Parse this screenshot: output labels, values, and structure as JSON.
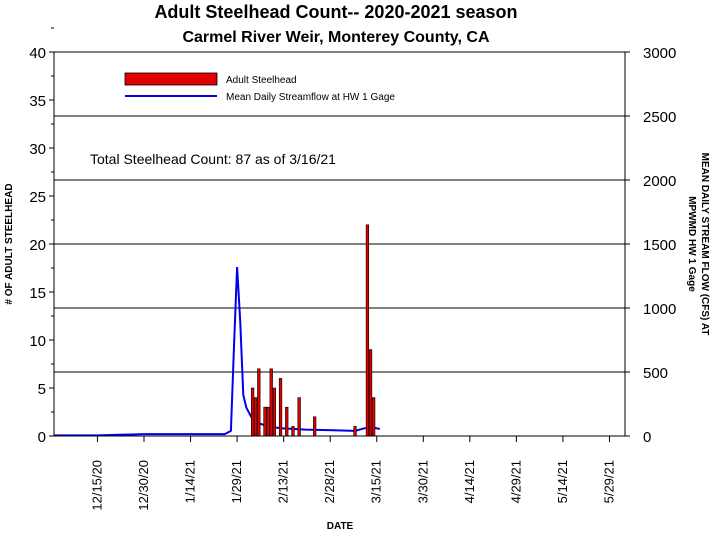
{
  "chart_data": {
    "type": "bar+line",
    "title": "Adult Steelhead Count-- 2020-2021 season",
    "subtitle": "Carmel River Weir, Monterey County, CA",
    "xlabel": "DATE",
    "ylabel_left": "# OF ADULT STEELHEAD",
    "ylabel_right_line1": "MEAN DAILY STREAM FLOW (CFS) AT",
    "ylabel_right_line2": "MPWMD HW 1 Gage",
    "annotation": "Total Steelhead Count: 87 as of 3/16/21",
    "xlim": [
      "2020-12-01",
      "2021-06-03"
    ],
    "ylim_left": [
      0,
      40
    ],
    "ylim_right": [
      0,
      3000
    ],
    "x_ticks": [
      "12/15/20",
      "12/30/20",
      "1/14/21",
      "1/29/21",
      "2/13/21",
      "2/28/21",
      "3/15/21",
      "3/30/21",
      "4/14/21",
      "4/29/21",
      "5/14/21",
      "5/29/21"
    ],
    "y_ticks_left": [
      "0",
      "5",
      "10",
      "15",
      "20",
      "25",
      "30",
      "35",
      "40"
    ],
    "y_ticks_right": [
      "0",
      "500",
      "1000",
      "1500",
      "2000",
      "2500",
      "3000"
    ],
    "grid": "horizontal lines at right-axis multiples of 500",
    "legend_placement": "top-left",
    "series": [
      {
        "name": "Adult Steelhead",
        "type": "bar",
        "color": "#e00000",
        "points": [
          {
            "date": "2021-02-03",
            "count": 5
          },
          {
            "date": "2021-02-04",
            "count": 4
          },
          {
            "date": "2021-02-05",
            "count": 7
          },
          {
            "date": "2021-02-07",
            "count": 3
          },
          {
            "date": "2021-02-08",
            "count": 3
          },
          {
            "date": "2021-02-09",
            "count": 7
          },
          {
            "date": "2021-02-10",
            "count": 5
          },
          {
            "date": "2021-02-12",
            "count": 6
          },
          {
            "date": "2021-02-14",
            "count": 3
          },
          {
            "date": "2021-02-16",
            "count": 1
          },
          {
            "date": "2021-02-18",
            "count": 4
          },
          {
            "date": "2021-02-23",
            "count": 2
          },
          {
            "date": "2021-03-08",
            "count": 1
          },
          {
            "date": "2021-03-12",
            "count": 22
          },
          {
            "date": "2021-03-13",
            "count": 9
          },
          {
            "date": "2021-03-14",
            "count": 4
          }
        ]
      },
      {
        "name": "Mean Daily Streamflow at HW 1 Gage",
        "type": "line",
        "color": "#0000ee",
        "points": [
          {
            "date": "2020-12-01",
            "cfs": 5
          },
          {
            "date": "2020-12-15",
            "cfs": 5
          },
          {
            "date": "2020-12-30",
            "cfs": 15
          },
          {
            "date": "2021-01-14",
            "cfs": 15
          },
          {
            "date": "2021-01-25",
            "cfs": 15
          },
          {
            "date": "2021-01-27",
            "cfs": 40
          },
          {
            "date": "2021-01-28",
            "cfs": 700
          },
          {
            "date": "2021-01-29",
            "cfs": 1320
          },
          {
            "date": "2021-01-30",
            "cfs": 900
          },
          {
            "date": "2021-01-31",
            "cfs": 320
          },
          {
            "date": "2021-02-01",
            "cfs": 220
          },
          {
            "date": "2021-02-03",
            "cfs": 130
          },
          {
            "date": "2021-02-05",
            "cfs": 100
          },
          {
            "date": "2021-02-08",
            "cfs": 75
          },
          {
            "date": "2021-02-12",
            "cfs": 60
          },
          {
            "date": "2021-02-20",
            "cfs": 50
          },
          {
            "date": "2021-03-01",
            "cfs": 45
          },
          {
            "date": "2021-03-08",
            "cfs": 40
          },
          {
            "date": "2021-03-11",
            "cfs": 60
          },
          {
            "date": "2021-03-13",
            "cfs": 65
          },
          {
            "date": "2021-03-15",
            "cfs": 60
          },
          {
            "date": "2021-03-16",
            "cfs": 55
          }
        ]
      }
    ]
  }
}
